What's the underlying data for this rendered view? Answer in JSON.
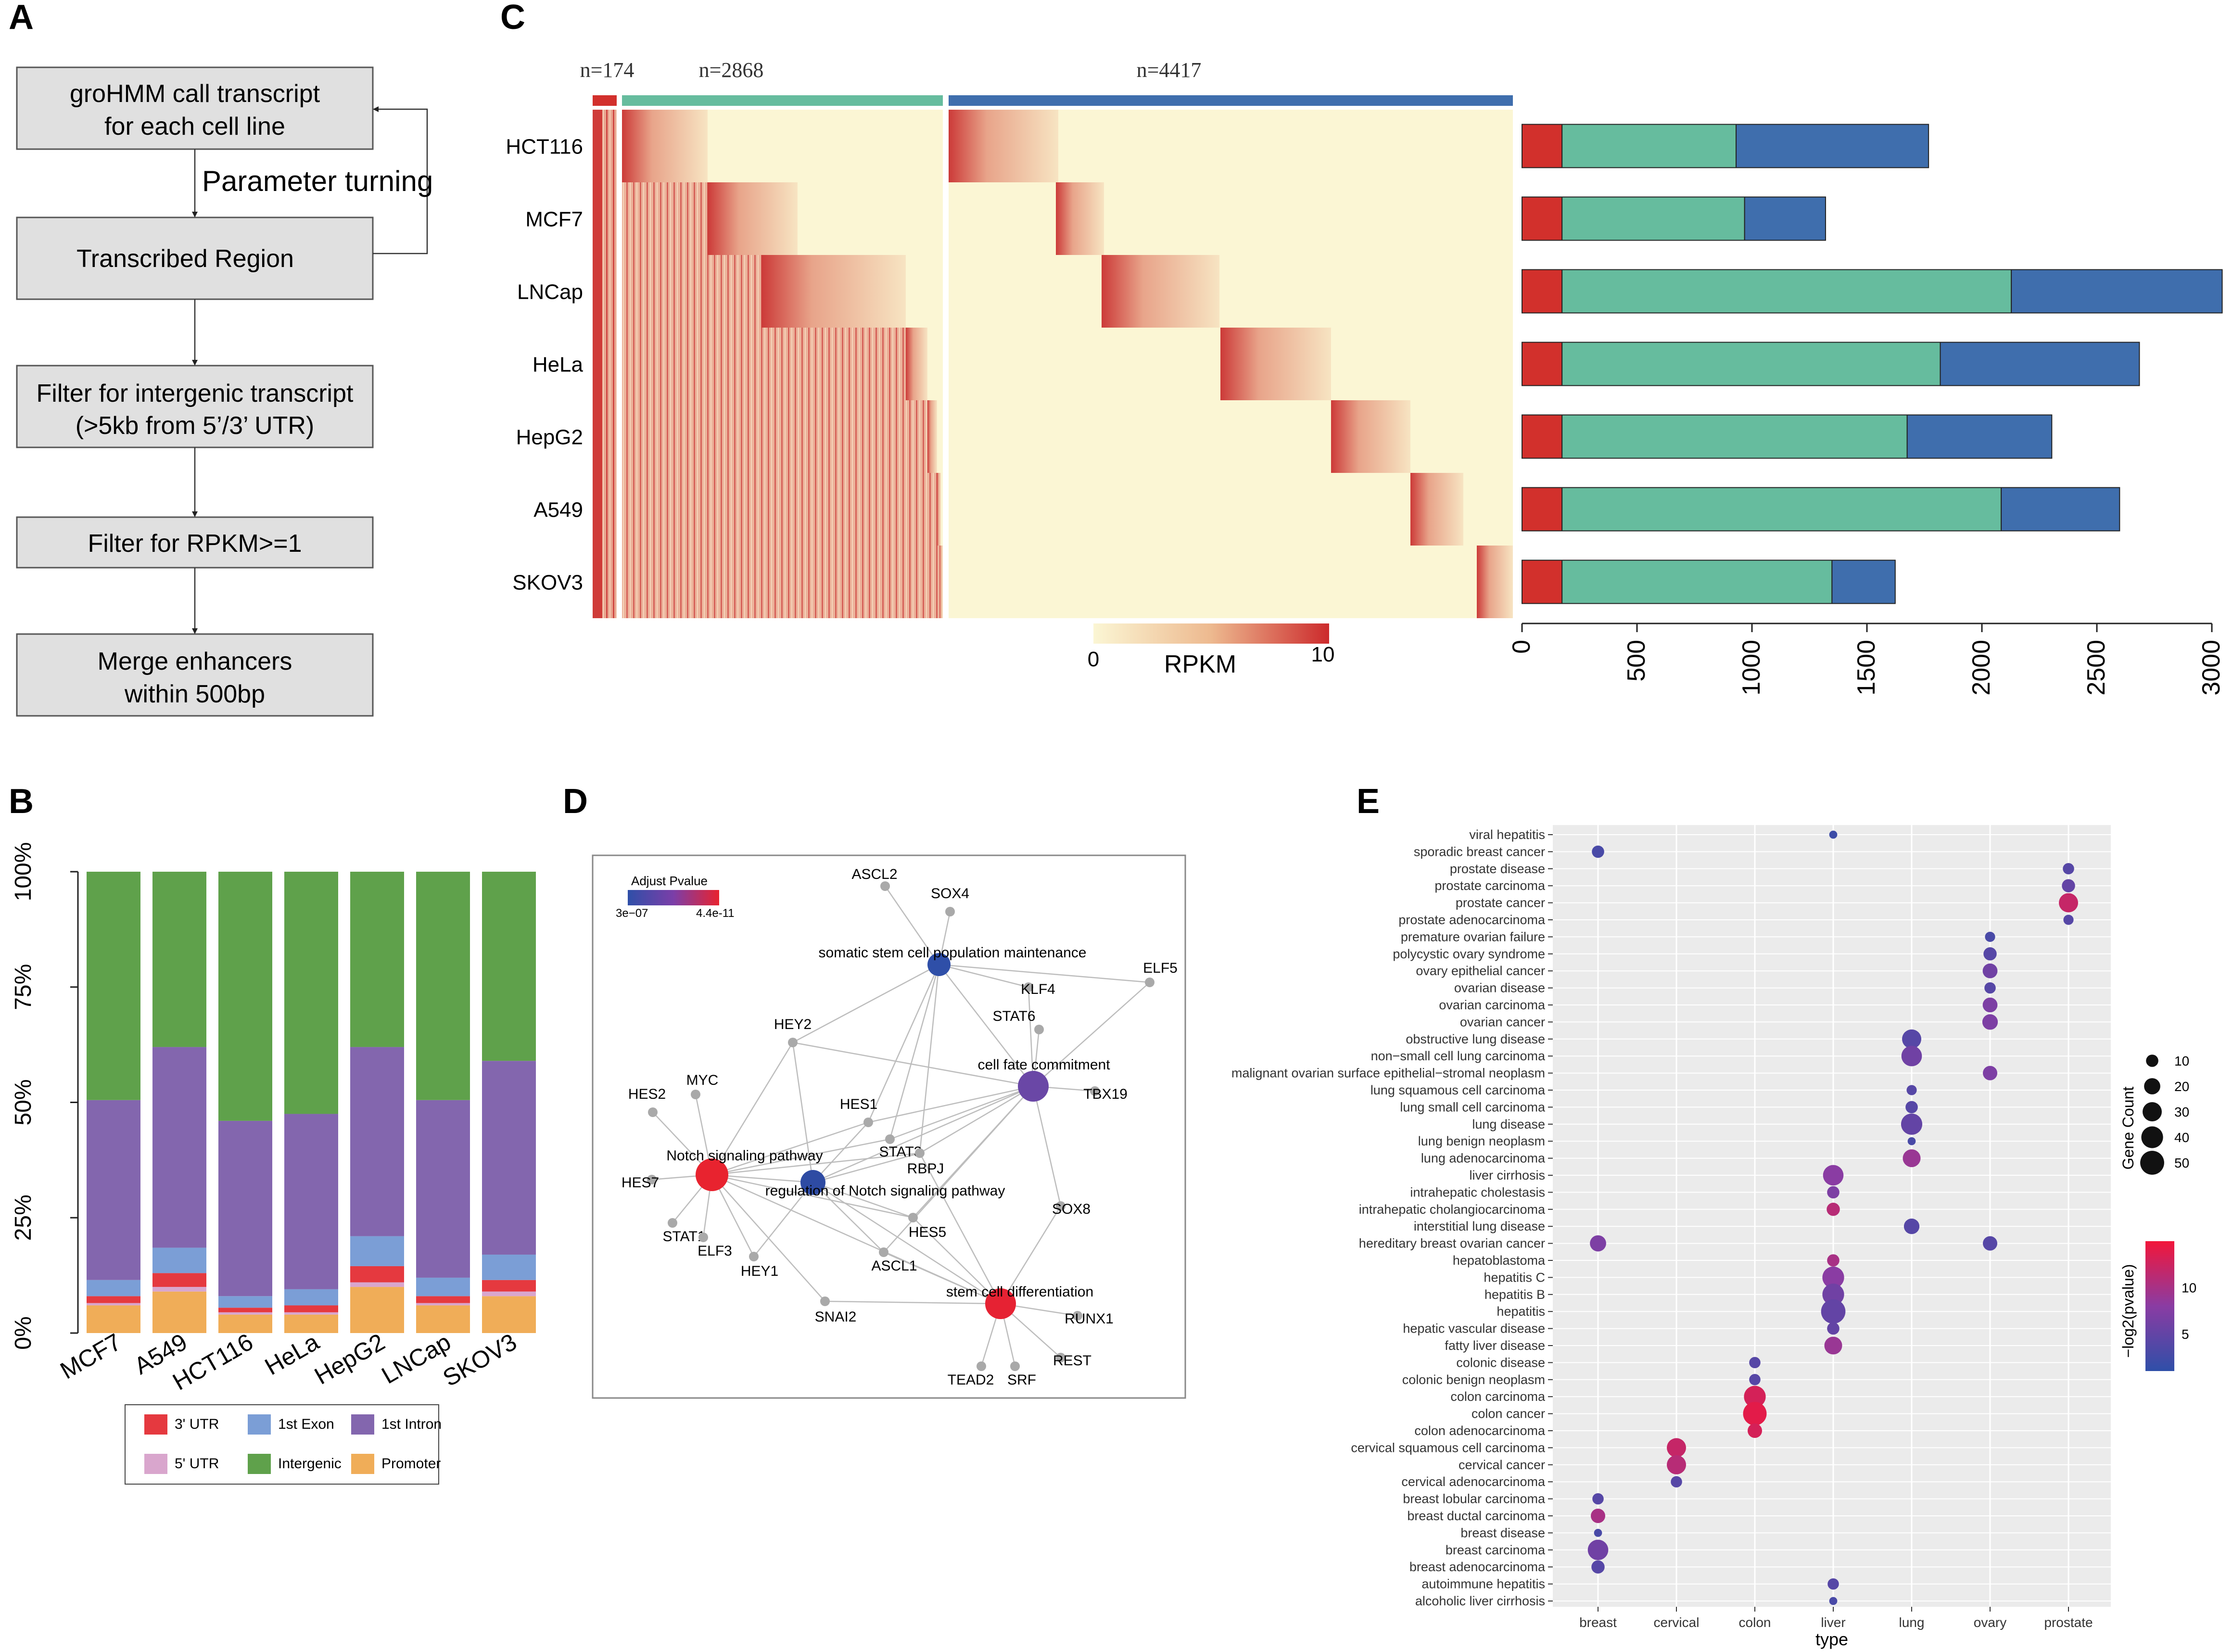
{
  "panel_letters": {
    "a": "A",
    "b": "B",
    "c": "C",
    "d": "D",
    "e": "E"
  },
  "flowchart": {
    "boxes": [
      {
        "line1": "groHMM call transcript",
        "line2": "for each cell line"
      },
      {
        "line1": "Transcribed Region",
        "line2": ""
      },
      {
        "line1": "Filter for intergenic transcript",
        "line2": "(>5kb from 5’/3’ UTR)"
      },
      {
        "line1": "Filter for RPKM>=1",
        "line2": ""
      },
      {
        "line1": "Merge enhancers",
        "line2": "within 500bp"
      }
    ],
    "loop_label": "Parameter turning"
  },
  "colors": {
    "red": "#D2302C",
    "teal": "#66BC9E",
    "blue": "#3F6EAD",
    "gray_box": "#E0E0E0",
    "panel_bg": "#EBEBEB"
  },
  "chart_data": [
    {
      "type": "bar",
      "panel": "B",
      "stacked": true,
      "categories": [
        "MCF7",
        "A549",
        "HCT116",
        "HeLa",
        "HepG2",
        "LNCap",
        "SKOV3"
      ],
      "yticks": [
        "0%",
        "25%",
        "50%",
        "75%",
        "100%"
      ],
      "ylim": [
        0,
        100
      ],
      "series": [
        {
          "name": "Promoter",
          "color": "#F0AD58",
          "values": [
            6,
            9,
            4,
            4,
            10,
            6,
            8
          ]
        },
        {
          "name": "5' UTR",
          "color": "#D9A6CD",
          "values": [
            0.5,
            1,
            0.5,
            0.5,
            1,
            0.5,
            1
          ]
        },
        {
          "name": "3' UTR",
          "color": "#E5393F",
          "values": [
            1.5,
            3,
            1,
            1.5,
            3.5,
            1.5,
            2.5
          ]
        },
        {
          "name": "1st Exon",
          "color": "#7B9ED6",
          "values": [
            3.5,
            5.5,
            2.5,
            3.5,
            6.5,
            4,
            5.5
          ]
        },
        {
          "name": "1st Intron",
          "color": "#8366AE",
          "values": [
            39,
            43.5,
            38,
            38,
            41,
            38.5,
            42
          ]
        },
        {
          "name": "Intergenic",
          "color": "#5FA14B",
          "values": [
            49.5,
            38,
            54,
            52.5,
            38,
            49.5,
            41
          ]
        }
      ],
      "legend": [
        {
          "name": "3' UTR",
          "color": "#E5393F"
        },
        {
          "name": "1st Exon",
          "color": "#7B9ED6"
        },
        {
          "name": "1st Intron",
          "color": "#8366AE"
        },
        {
          "name": "5' UTR",
          "color": "#D9A6CD"
        },
        {
          "name": "Intergenic",
          "color": "#5FA14B"
        },
        {
          "name": "Promoter",
          "color": "#F0AD58"
        }
      ]
    },
    {
      "type": "heatmap",
      "panel": "C",
      "rows": [
        "HCT116",
        "MCF7",
        "LNCap",
        "HeLa",
        "HepG2",
        "A549",
        "SKOV3"
      ],
      "column_groups": [
        {
          "label": "n=174",
          "n": 174
        },
        {
          "label": "n=2868",
          "n": 2868
        },
        {
          "label": "n=4417",
          "n": 4417
        }
      ],
      "colorbar": {
        "min_label": "0",
        "max_label": "10",
        "title": "RPKM",
        "min": 0,
        "max": 10
      }
    },
    {
      "type": "bar",
      "panel": "C-right",
      "stacked": true,
      "orientation": "horizontal",
      "categories": [
        "HCT116",
        "MCF7",
        "LNCap",
        "HeLa",
        "HepG2",
        "A549",
        "SKOV3"
      ],
      "series": [
        {
          "name": "red group",
          "values": [
            174,
            174,
            174,
            174,
            174,
            174,
            174
          ]
        },
        {
          "name": "teal group",
          "values": [
            757,
            794,
            1954,
            1645,
            1501,
            1910,
            1174
          ]
        },
        {
          "name": "blue group",
          "values": [
            837,
            352,
            917,
            866,
            629,
            515,
            275
          ]
        }
      ],
      "xticks": [
        "0",
        "500",
        "1000",
        "1500",
        "2000",
        "2500",
        "3000"
      ],
      "xlim": [
        0,
        3000
      ]
    },
    {
      "type": "scatter",
      "panel": "E",
      "xcategories": [
        "breast",
        "cervical",
        "colon",
        "liver",
        "lung",
        "ovary",
        "prostate"
      ],
      "xlabel": "type",
      "ycategories": [
        "viral hepatitis",
        "sporadic breast cancer",
        "prostate disease",
        "prostate carcinoma",
        "prostate cancer",
        "prostate adenocarcinoma",
        "premature ovarian failure",
        "polycystic ovary syndrome",
        "ovary epithelial cancer",
        "ovarian disease",
        "ovarian carcinoma",
        "ovarian cancer",
        "obstructive lung disease",
        "non−small cell lung carcinoma",
        "malignant ovarian surface epithelial−stromal neoplasm",
        "lung squamous cell carcinoma",
        "lung small cell carcinoma",
        "lung disease",
        "lung benign neoplasm",
        "lung adenocarcinoma",
        "liver cirrhosis",
        "intrahepatic cholestasis",
        "intrahepatic cholangiocarcinoma",
        "interstitial lung disease",
        "hereditary breast ovarian cancer",
        "hepatoblastoma",
        "hepatitis C",
        "hepatitis B",
        "hepatitis",
        "hepatic vascular disease",
        "fatty liver disease",
        "colonic disease",
        "colonic benign neoplasm",
        "colon carcinoma",
        "colon cancer",
        "colon adenocarcinoma",
        "cervical squamous cell carcinoma",
        "cervical cancer",
        "cervical adenocarcinoma",
        "breast lobular carcinoma",
        "breast ductal carcinoma",
        "breast disease",
        "breast carcinoma",
        "breast adenocarcinoma",
        "autoimmune hepatitis",
        "alcoholic liver cirrhosis"
      ],
      "points": [
        {
          "x": "liver",
          "y": "viral hepatitis",
          "count": 3,
          "v": 2
        },
        {
          "x": "breast",
          "y": "sporadic breast cancer",
          "count": 10,
          "v": 3
        },
        {
          "x": "prostate",
          "y": "prostate disease",
          "count": 8,
          "v": 4
        },
        {
          "x": "prostate",
          "y": "prostate carcinoma",
          "count": 12,
          "v": 5
        },
        {
          "x": "prostate",
          "y": "prostate cancer",
          "count": 30,
          "v": 12
        },
        {
          "x": "prostate",
          "y": "prostate adenocarcinoma",
          "count": 6,
          "v": 4
        },
        {
          "x": "ovary",
          "y": "premature ovarian failure",
          "count": 6,
          "v": 3
        },
        {
          "x": "ovary",
          "y": "polycystic ovary syndrome",
          "count": 12,
          "v": 4
        },
        {
          "x": "ovary",
          "y": "ovary epithelial cancer",
          "count": 16,
          "v": 6
        },
        {
          "x": "ovary",
          "y": "ovarian disease",
          "count": 8,
          "v": 4
        },
        {
          "x": "ovary",
          "y": "ovarian carcinoma",
          "count": 16,
          "v": 7
        },
        {
          "x": "ovary",
          "y": "ovarian cancer",
          "count": 18,
          "v": 7
        },
        {
          "x": "lung",
          "y": "obstructive lung disease",
          "count": 30,
          "v": 4
        },
        {
          "x": "lung",
          "y": "non−small cell lung carcinoma",
          "count": 35,
          "v": 6
        },
        {
          "x": "ovary",
          "y": "malignant ovarian surface epithelial−stromal neoplasm",
          "count": 15,
          "v": 7
        },
        {
          "x": "lung",
          "y": "lung squamous cell carcinoma",
          "count": 6,
          "v": 4
        },
        {
          "x": "lung",
          "y": "lung small cell carcinoma",
          "count": 10,
          "v": 4
        },
        {
          "x": "lung",
          "y": "lung disease",
          "count": 38,
          "v": 5
        },
        {
          "x": "lung",
          "y": "lung benign neoplasm",
          "count": 3,
          "v": 3
        },
        {
          "x": "lung",
          "y": "lung adenocarcinoma",
          "count": 25,
          "v": 9
        },
        {
          "x": "liver",
          "y": "liver cirrhosis",
          "count": 35,
          "v": 8
        },
        {
          "x": "liver",
          "y": "intrahepatic cholestasis",
          "count": 10,
          "v": 7
        },
        {
          "x": "liver",
          "y": "intrahepatic cholangiocarcinoma",
          "count": 12,
          "v": 11
        },
        {
          "x": "lung",
          "y": "interstitial lung disease",
          "count": 18,
          "v": 4
        },
        {
          "x": "breast",
          "y": "hereditary breast ovarian cancer",
          "count": 20,
          "v": 7
        },
        {
          "x": "ovary",
          "y": "hereditary breast ovarian cancer",
          "count": 15,
          "v": 4
        },
        {
          "x": "liver",
          "y": "hepatoblastoma",
          "count": 10,
          "v": 10
        },
        {
          "x": "liver",
          "y": "hepatitis C",
          "count": 40,
          "v": 8
        },
        {
          "x": "liver",
          "y": "hepatitis B",
          "count": 40,
          "v": 6
        },
        {
          "x": "liver",
          "y": "hepatitis",
          "count": 52,
          "v": 5
        },
        {
          "x": "liver",
          "y": "hepatic vascular disease",
          "count": 10,
          "v": 5
        },
        {
          "x": "liver",
          "y": "fatty liver disease",
          "count": 25,
          "v": 9
        },
        {
          "x": "colon",
          "y": "colonic disease",
          "count": 8,
          "v": 4
        },
        {
          "x": "colon",
          "y": "colonic benign neoplasm",
          "count": 8,
          "v": 4
        },
        {
          "x": "colon",
          "y": "colon carcinoma",
          "count": 40,
          "v": 13
        },
        {
          "x": "colon",
          "y": "colon cancer",
          "count": 48,
          "v": 14
        },
        {
          "x": "colon",
          "y": "colon adenocarcinoma",
          "count": 15,
          "v": 13
        },
        {
          "x": "cervical",
          "y": "cervical squamous cell carcinoma",
          "count": 30,
          "v": 12
        },
        {
          "x": "cervical",
          "y": "cervical cancer",
          "count": 30,
          "v": 11
        },
        {
          "x": "cervical",
          "y": "cervical adenocarcinoma",
          "count": 8,
          "v": 4
        },
        {
          "x": "breast",
          "y": "breast lobular carcinoma",
          "count": 8,
          "v": 4
        },
        {
          "x": "breast",
          "y": "breast ductal carcinoma",
          "count": 15,
          "v": 10
        },
        {
          "x": "breast",
          "y": "breast disease",
          "count": 3,
          "v": 3
        },
        {
          "x": "breast",
          "y": "breast carcinoma",
          "count": 35,
          "v": 6
        },
        {
          "x": "breast",
          "y": "breast adenocarcinoma",
          "count": 12,
          "v": 4
        },
        {
          "x": "liver",
          "y": "autoimmune hepatitis",
          "count": 8,
          "v": 4
        },
        {
          "x": "liver",
          "y": "alcoholic liver cirrhosis",
          "count": 3,
          "v": 3
        }
      ],
      "size_legend": {
        "title": "Gene Count",
        "values": [
          10,
          20,
          30,
          40,
          50
        ],
        "labels": [
          "10",
          "20",
          "30",
          "40",
          "50"
        ]
      },
      "color_legend": {
        "title": "−log2(pvalue)",
        "ticks": [
          "5",
          "10"
        ],
        "min": 1,
        "max": 15
      }
    }
  ],
  "network": {
    "legend_title": "Adjust Pvalue",
    "legend_min": "3e−07",
    "legend_max": "4.4e-11",
    "hubs": [
      {
        "name": "somatic stem cell population maintenance",
        "color": "#2F4FA8"
      },
      {
        "name": "cell fate commitment",
        "color": "#6A47A6"
      },
      {
        "name": "Notch signaling pathway",
        "color": "#E8232F"
      },
      {
        "name": "regulation of Notch signaling pathway",
        "color": "#2E4BA3"
      },
      {
        "name": "stem cell differentiation",
        "color": "#E62233"
      }
    ],
    "genes": [
      "ASCL2",
      "SOX4",
      "ELF5",
      "KLF4",
      "STAT6",
      "HEY2",
      "TBX19",
      "MYC",
      "HES2",
      "HES1",
      "STAT3",
      "RBPJ",
      "HES7",
      "STAT1",
      "ELF3",
      "HEY1",
      "HES5",
      "ASCL1",
      "SOX8",
      "SNAI2",
      "RUNX1",
      "REST",
      "TEAD2",
      "SRF"
    ]
  }
}
